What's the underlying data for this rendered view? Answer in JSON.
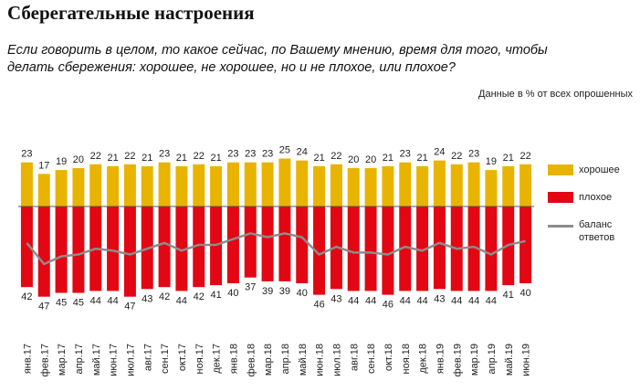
{
  "title": "Сберегательные настроения",
  "subtitle": "Если говорить в целом, то какое сейчас, по Вашему мнению, время для того, чтобы делать сбережения: хорошее, не хорошее, но и не плохое, или плохое?",
  "note": "Данные в % от всех опрошенных",
  "chart_data": {
    "type": "bar",
    "categories": [
      "янв.17",
      "фев.17",
      "мар.17",
      "апр.17",
      "май.17",
      "июн.17",
      "июл.17",
      "авг.17",
      "сен.17",
      "окт.17",
      "ноя.17",
      "дек.17",
      "янв.18",
      "фев.18",
      "мар.18",
      "апр.18",
      "май.18",
      "июн.18",
      "июл.18",
      "авг.18",
      "сен.18",
      "окт.18",
      "ноя.18",
      "дек.18",
      "янв.19",
      "фев.19",
      "мар.19",
      "апр.19",
      "май.19",
      "июн.19"
    ],
    "ylim": [
      -50,
      30
    ],
    "series": [
      {
        "name": "хорошее",
        "color": "#e8b400",
        "values": [
          23,
          17,
          19,
          20,
          22,
          21,
          22,
          21,
          23,
          21,
          22,
          21,
          23,
          23,
          23,
          25,
          24,
          21,
          22,
          20,
          20,
          21,
          23,
          21,
          24,
          22,
          23,
          19,
          21,
          22
        ]
      },
      {
        "name": "плохое",
        "color": "#e30613",
        "values": [
          42,
          47,
          45,
          45,
          44,
          44,
          47,
          43,
          42,
          44,
          42,
          41,
          40,
          37,
          39,
          39,
          40,
          46,
          43,
          44,
          44,
          46,
          44,
          44,
          43,
          44,
          44,
          44,
          41,
          40
        ]
      },
      {
        "name": "баланс ответов",
        "color": "#8c8c8c",
        "type": "line",
        "values": [
          -19,
          -30,
          -26,
          -25,
          -22,
          -23,
          -25,
          -22,
          -19,
          -23,
          -20,
          -20,
          -17,
          -14,
          -16,
          -14,
          -16,
          -25,
          -21,
          -24,
          -24,
          -25,
          -21,
          -23,
          -19,
          -22,
          -21,
          -25,
          -20,
          -18
        ]
      }
    ]
  }
}
